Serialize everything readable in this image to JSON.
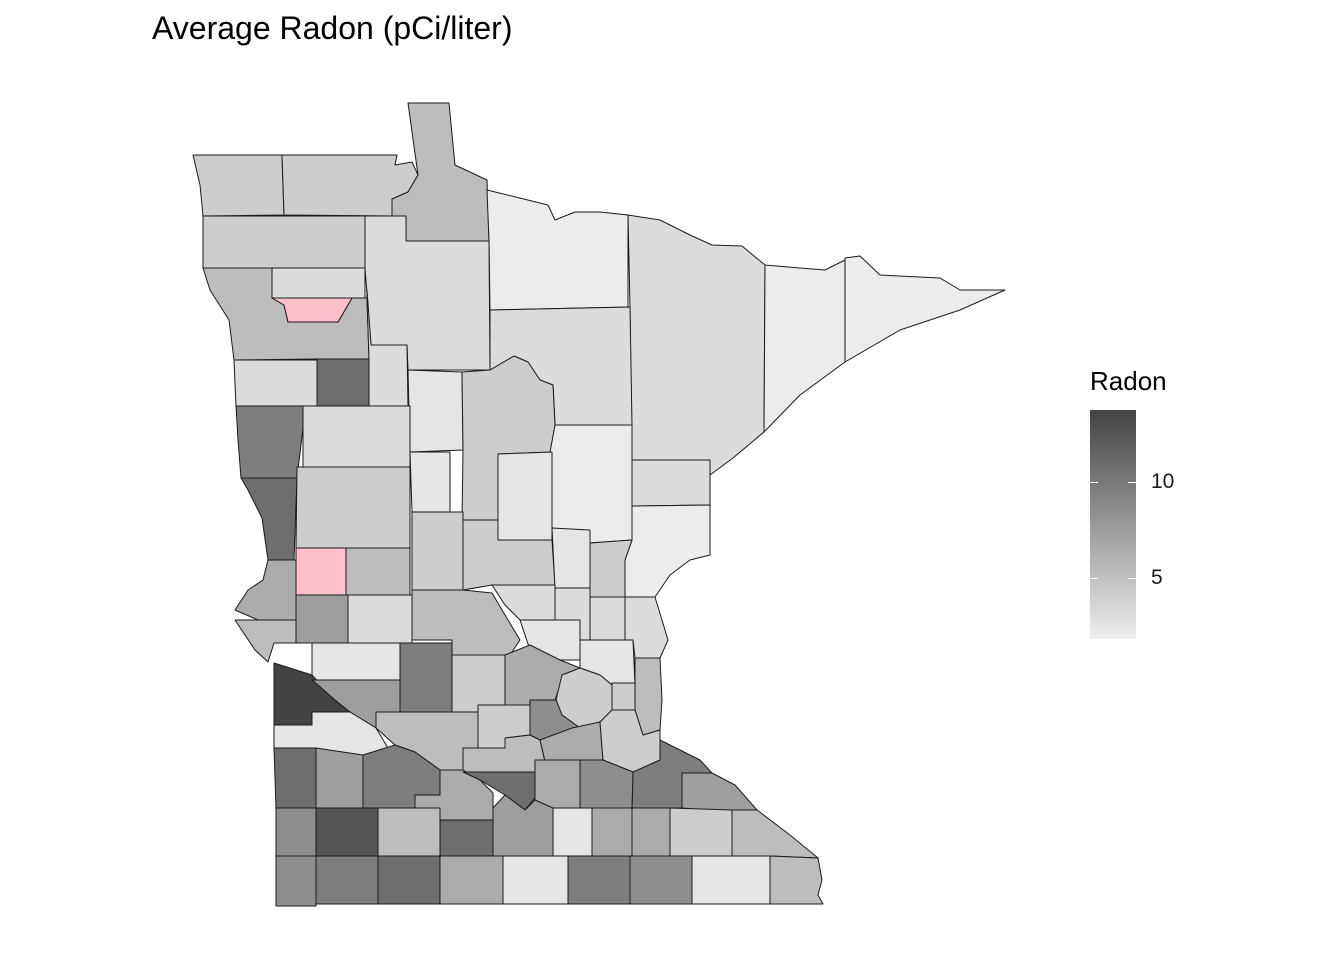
{
  "title": "Average Radon (pCi/liter)",
  "legend": {
    "title": "Radon",
    "labels": [
      "10",
      "5"
    ],
    "low_color": "#eeeeee",
    "high_color": "#434343",
    "missing_color": "#ffc0cb"
  },
  "colors": {
    "c1": "#434343",
    "c2": "#555555",
    "c3": "#6e6e6e",
    "c4": "#7e7e7e",
    "c5": "#8e8e8e",
    "c6": "#9e9e9e",
    "c7": "#acacac",
    "c8": "#bdbdbd",
    "c9": "#cdcdcd",
    "c10": "#dcdcdc",
    "c11": "#e5e5e5",
    "c12": "#ececec",
    "na": "#ffc0cb"
  }
}
